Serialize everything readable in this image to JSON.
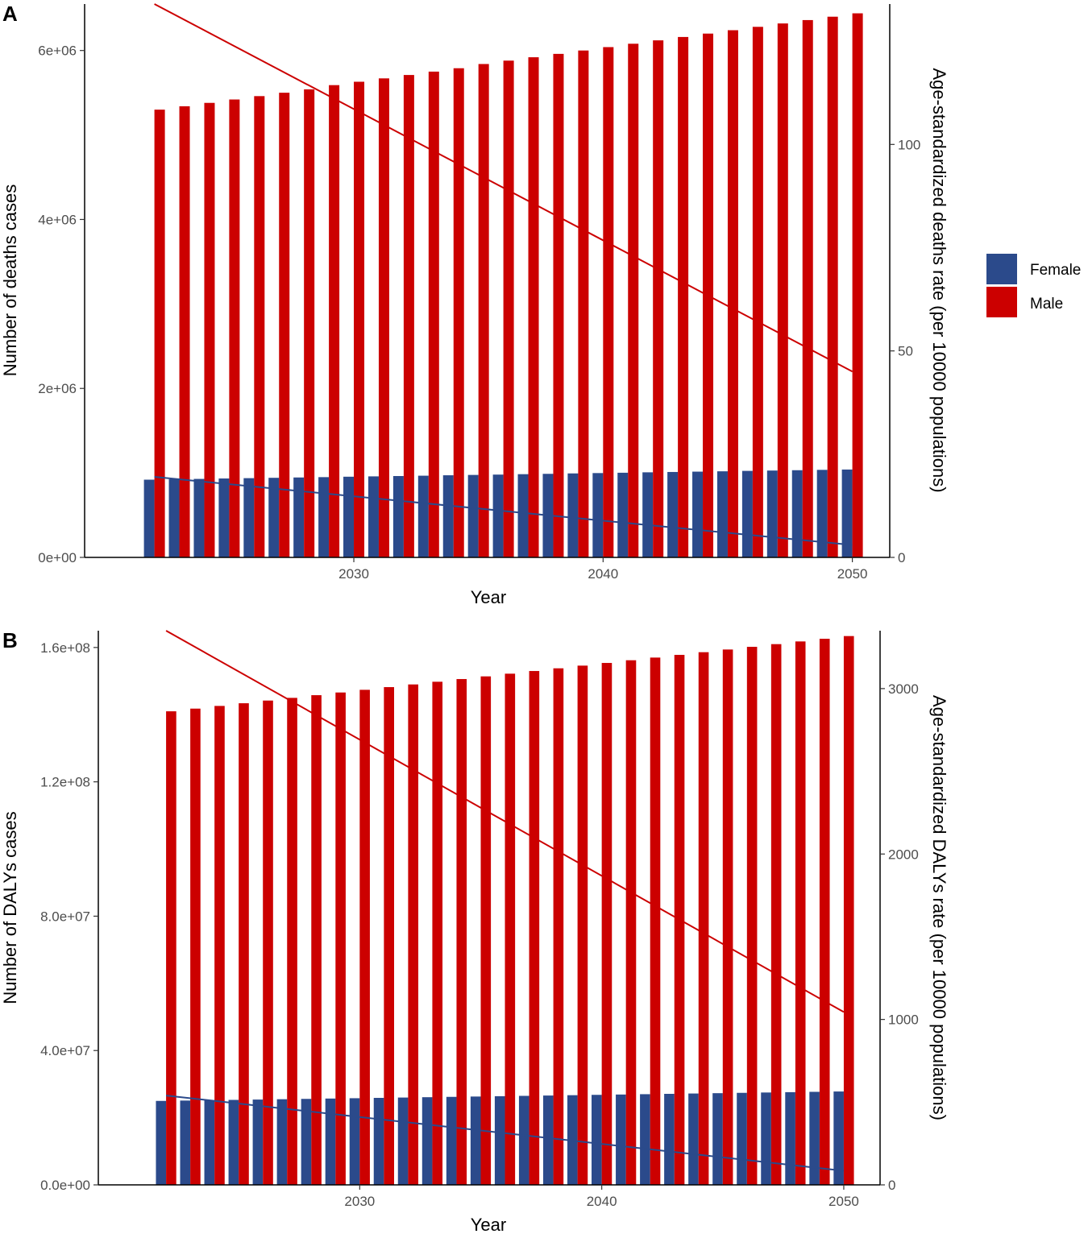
{
  "legend": {
    "items": [
      {
        "label": "Female",
        "color": "#2b4a8b"
      },
      {
        "label": "Male",
        "color": "#cc0000"
      }
    ]
  },
  "chart_data": [
    {
      "type": "bar",
      "panel_label": "A",
      "xlabel": "Year",
      "ylabel": "Number of deaths cases",
      "y2label": "Age-standardized deaths rate (per 10000 populations)",
      "xlim": [
        2019.2,
        2051.5
      ],
      "ylim": [
        0,
        6550000
      ],
      "y2lim": [
        0,
        134
      ],
      "x_ticks": [
        2030,
        2040,
        2050
      ],
      "y_ticks": [
        0,
        2000000,
        4000000,
        6000000
      ],
      "y_tick_labels": [
        "0e+00",
        "2e+06",
        "4e+06",
        "6e+06"
      ],
      "y2_ticks": [
        0,
        50,
        100
      ],
      "x": [
        2022,
        2023,
        2024,
        2025,
        2026,
        2027,
        2028,
        2029,
        2030,
        2031,
        2032,
        2033,
        2034,
        2035,
        2036,
        2037,
        2038,
        2039,
        2040,
        2041,
        2042,
        2043,
        2044,
        2045,
        2046,
        2047,
        2048,
        2049,
        2050
      ],
      "series": [
        {
          "name": "Female",
          "kind": "bar",
          "axis": "left",
          "color": "#2b4a8b",
          "values": [
            920000,
            925000,
            929000,
            934000,
            938000,
            942000,
            946000,
            950000,
            955000,
            959000,
            963000,
            967000,
            972000,
            976000,
            980000,
            985000,
            989000,
            994000,
            998000,
            1002000,
            1007000,
            1011000,
            1015000,
            1019000,
            1024000,
            1028000,
            1032000,
            1036000,
            1040000
          ]
        },
        {
          "name": "Male",
          "kind": "bar",
          "axis": "left",
          "color": "#cc0000",
          "values": [
            5300000,
            5340000,
            5380000,
            5420000,
            5460000,
            5500000,
            5540000,
            5590000,
            5630000,
            5670000,
            5710000,
            5750000,
            5790000,
            5840000,
            5880000,
            5920000,
            5960000,
            6000000,
            6040000,
            6080000,
            6120000,
            6160000,
            6200000,
            6240000,
            6280000,
            6320000,
            6360000,
            6400000,
            6440000
          ]
        },
        {
          "name": "Female",
          "kind": "line",
          "axis": "right",
          "color": "#2b4a8b",
          "x": [
            2022,
            2050
          ],
          "values": [
            19.5,
            3.0
          ]
        },
        {
          "name": "Male",
          "kind": "line",
          "axis": "right",
          "color": "#cc0000",
          "x": [
            2022,
            2050
          ],
          "values": [
            134,
            45
          ]
        }
      ]
    },
    {
      "type": "bar",
      "panel_label": "B",
      "xlabel": "Year",
      "ylabel": "Number of DALYs cases",
      "y2label": "Age-standardized DALYs rate (per 10000 populations)",
      "xlim": [
        2019.2,
        2051.5
      ],
      "ylim": [
        0,
        165000000
      ],
      "y2lim": [
        0,
        3350
      ],
      "x_ticks": [
        2030,
        2040,
        2050
      ],
      "y_ticks": [
        0,
        40000000,
        80000000,
        120000000,
        160000000
      ],
      "y_tick_labels": [
        "0.0e+00",
        "4.0e+07",
        "8.0e+07",
        "1.2e+08",
        "1.6e+08"
      ],
      "y2_ticks": [
        0,
        1000,
        2000,
        3000
      ],
      "x": [
        2022,
        2023,
        2024,
        2025,
        2026,
        2027,
        2028,
        2029,
        2030,
        2031,
        2032,
        2033,
        2034,
        2035,
        2036,
        2037,
        2038,
        2039,
        2040,
        2041,
        2042,
        2043,
        2044,
        2045,
        2046,
        2047,
        2048,
        2049,
        2050
      ],
      "series": [
        {
          "name": "Female",
          "kind": "bar",
          "axis": "left",
          "color": "#2b4a8b",
          "values": [
            25000000,
            25100000,
            25200000,
            25300000,
            25400000,
            25500000,
            25600000,
            25700000,
            25800000,
            25900000,
            26000000,
            26100000,
            26200000,
            26300000,
            26400000,
            26500000,
            26600000,
            26700000,
            26800000,
            26900000,
            27000000,
            27100000,
            27200000,
            27300000,
            27400000,
            27500000,
            27600000,
            27700000,
            27800000
          ]
        },
        {
          "name": "Male",
          "kind": "bar",
          "axis": "left",
          "color": "#cc0000",
          "values": [
            141000000,
            141800000,
            142600000,
            143400000,
            144200000,
            145000000,
            145800000,
            146600000,
            147400000,
            148200000,
            149000000,
            149800000,
            150600000,
            151400000,
            152200000,
            153000000,
            153800000,
            154600000,
            155400000,
            156200000,
            157000000,
            157800000,
            158600000,
            159400000,
            160200000,
            161000000,
            161800000,
            162600000,
            163400000
          ]
        },
        {
          "name": "Female",
          "kind": "line",
          "axis": "right",
          "color": "#2b4a8b",
          "x": [
            2022,
            2050
          ],
          "values": [
            540,
            85
          ]
        },
        {
          "name": "Male",
          "kind": "line",
          "axis": "right",
          "color": "#cc0000",
          "x": [
            2022,
            2050
          ],
          "values": [
            3350,
            1045
          ]
        }
      ]
    }
  ]
}
